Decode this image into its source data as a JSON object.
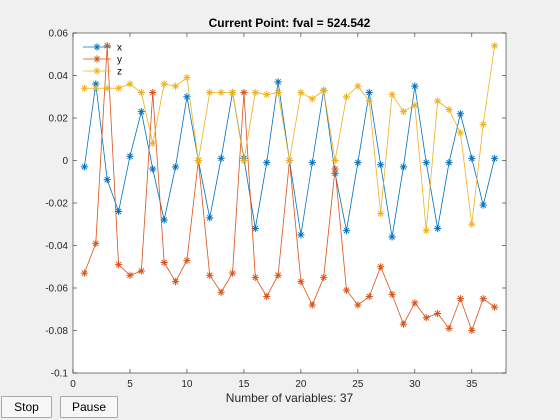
{
  "buttons": {
    "stop": "Stop",
    "pause": "Pause"
  },
  "chart_data": {
    "type": "line",
    "title": "Current Point: fval = 524.542",
    "xlabel": "Number of variables: 37",
    "ylabel": "",
    "xlim": [
      0,
      38
    ],
    "ylim": [
      -0.1,
      0.06
    ],
    "xticks": [
      0,
      5,
      10,
      15,
      20,
      25,
      30,
      35
    ],
    "yticks": [
      -0.1,
      -0.08,
      -0.06,
      -0.04,
      -0.02,
      0,
      0.02,
      0.04,
      0.06
    ],
    "ytick_labels": [
      "-0.1",
      "-0.08",
      "-0.06",
      "-0.04",
      "-0.02",
      "0",
      "0.02",
      "0.04",
      "0.06"
    ],
    "xtick_labels": [
      "0",
      "5",
      "10",
      "15",
      "20",
      "25",
      "30",
      "35"
    ],
    "grid": false,
    "legend_position": "top-left",
    "marker": "asterisk",
    "x": [
      1,
      2,
      3,
      4,
      5,
      6,
      7,
      8,
      9,
      10,
      11,
      12,
      13,
      14,
      15,
      16,
      17,
      18,
      19,
      20,
      21,
      22,
      23,
      24,
      25,
      26,
      27,
      28,
      29,
      30,
      31,
      32,
      33,
      34,
      35,
      36,
      37
    ],
    "series": [
      {
        "name": "x",
        "color": "#0072BD",
        "values": [
          -0.003,
          0.036,
          -0.009,
          -0.024,
          0.002,
          0.023,
          -0.004,
          -0.028,
          -0.003,
          0.03,
          0.0,
          -0.027,
          0.001,
          0.032,
          0.001,
          -0.032,
          -0.001,
          0.037,
          0.0,
          -0.035,
          -0.001,
          0.033,
          -0.006,
          -0.033,
          -0.001,
          0.032,
          -0.002,
          -0.036,
          -0.003,
          0.035,
          -0.001,
          -0.032,
          -0.001,
          0.022,
          0.001,
          -0.021,
          0.001
        ]
      },
      {
        "name": "y",
        "color": "#D95319",
        "values": [
          -0.053,
          -0.039,
          0.054,
          -0.049,
          -0.054,
          -0.052,
          0.032,
          -0.048,
          -0.057,
          -0.047,
          0.0,
          -0.054,
          -0.062,
          -0.053,
          0.032,
          -0.055,
          -0.064,
          -0.054,
          0.0,
          -0.057,
          -0.068,
          -0.055,
          -0.004,
          -0.061,
          -0.068,
          -0.064,
          -0.05,
          -0.063,
          -0.077,
          -0.067,
          -0.074,
          -0.072,
          -0.079,
          -0.065,
          -0.08,
          -0.065,
          -0.069
        ]
      },
      {
        "name": "z",
        "color": "#EDB120",
        "values": [
          0.034,
          0.034,
          0.034,
          0.034,
          0.036,
          0.032,
          0.008,
          0.036,
          0.035,
          0.039,
          0.0,
          0.032,
          0.032,
          0.032,
          0.0,
          0.032,
          0.031,
          0.032,
          0.0,
          0.032,
          0.029,
          0.033,
          0.0,
          0.03,
          0.035,
          0.028,
          -0.025,
          0.031,
          0.023,
          0.026,
          -0.033,
          0.028,
          0.024,
          0.013,
          -0.03,
          0.017,
          0.054
        ]
      }
    ]
  }
}
